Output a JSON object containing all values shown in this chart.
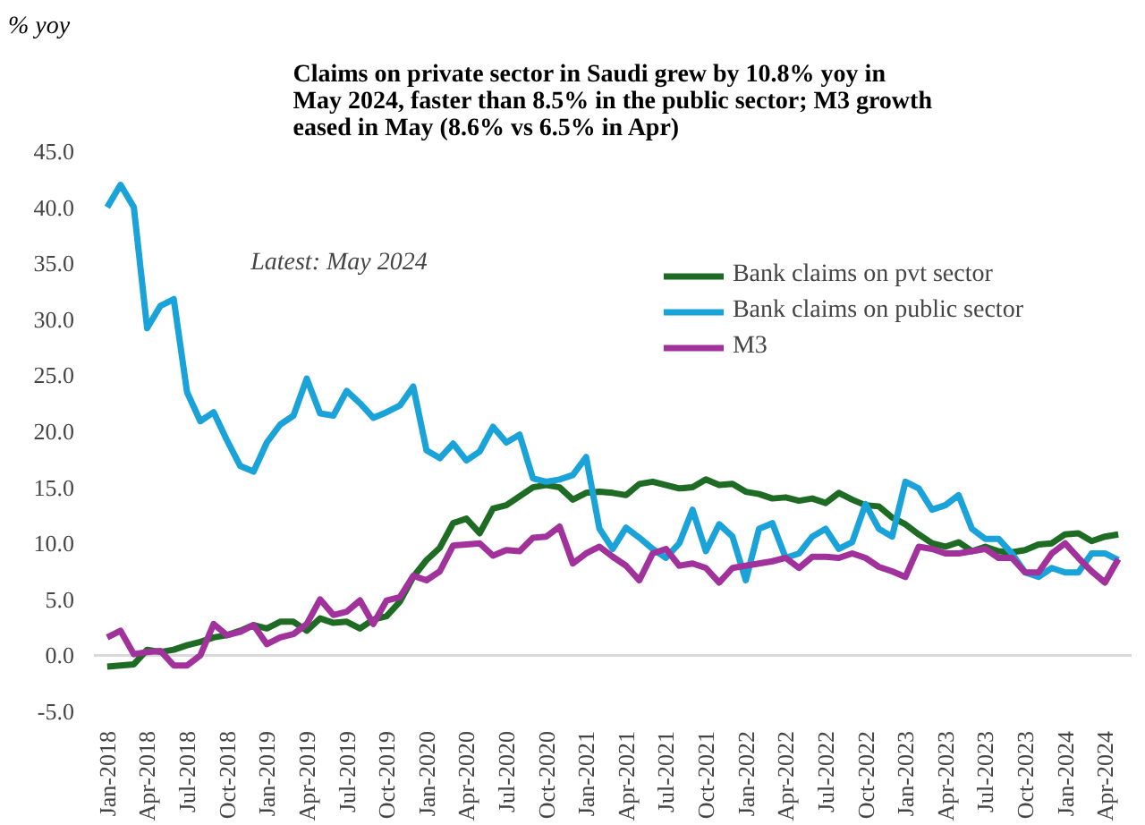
{
  "chart_data": {
    "type": "line",
    "title": "Claims on private sector in Saudi grew by 10.8% yoy in\nMay 2024, faster than 8.5% in the public sector; M3 growth\neased in May (8.6% vs 6.5% in Apr)",
    "ylabel": "% yoy",
    "annotations": [
      "Latest: May 2024"
    ],
    "categories": [
      "Jan-2018",
      null,
      null,
      "Apr-2018",
      null,
      null,
      "Jul-2018",
      null,
      null,
      "Oct-2018",
      null,
      null,
      "Jan-2019",
      null,
      null,
      "Apr-2019",
      null,
      null,
      "Jul-2019",
      null,
      null,
      "Oct-2019",
      null,
      null,
      "Jan-2020",
      null,
      null,
      "Apr-2020",
      null,
      null,
      "Jul-2020",
      null,
      null,
      "Oct-2020",
      null,
      null,
      "Jan-2021",
      null,
      null,
      "Apr-2021",
      null,
      null,
      "Jul-2021",
      null,
      null,
      "Oct-2021",
      null,
      null,
      "Jan-2022",
      null,
      null,
      "Apr-2022",
      null,
      null,
      "Jul-2022",
      null,
      null,
      "Oct-2022",
      null,
      null,
      "Jan-2023",
      null,
      null,
      "Apr-2023",
      null,
      null,
      "Jul-2023",
      null,
      null,
      "Oct-2023",
      null,
      null,
      "Jan-2024",
      null,
      null,
      "Apr-2024",
      null
    ],
    "series": [
      {
        "name": "Bank claims on pvt sector",
        "color": "#1e6b23",
        "values": [
          -1.0,
          -0.9,
          -0.8,
          0.5,
          0.3,
          0.5,
          0.9,
          1.2,
          1.6,
          1.8,
          2.2,
          2.7,
          2.4,
          3.0,
          3.0,
          2.2,
          3.3,
          2.9,
          3.0,
          2.4,
          3.2,
          3.5,
          4.8,
          7.0,
          8.5,
          9.6,
          11.8,
          12.2,
          10.9,
          13.1,
          13.4,
          14.2,
          15.0,
          15.2,
          15.0,
          13.9,
          14.5,
          14.6,
          14.5,
          14.3,
          15.3,
          15.5,
          15.2,
          14.9,
          15.0,
          15.7,
          15.2,
          15.3,
          14.6,
          14.4,
          14.0,
          14.1,
          13.8,
          14.0,
          13.6,
          14.5,
          13.9,
          13.4,
          13.3,
          12.3,
          11.7,
          10.8,
          10.0,
          9.7,
          10.1,
          9.3,
          9.7,
          9.3,
          9.2,
          9.4,
          9.9,
          10.0,
          10.8,
          10.9,
          10.2,
          10.6,
          10.8
        ]
      },
      {
        "name": "Bank claims on public sector",
        "color": "#1aa3d9",
        "values": [
          40,
          42,
          40,
          29.2,
          31.2,
          31.8,
          23.5,
          20.9,
          21.7,
          19.2,
          16.9,
          16.4,
          19,
          20.6,
          21.4,
          24.7,
          21.6,
          21.4,
          23.6,
          22.5,
          21.2,
          21.7,
          22.3,
          24,
          18.3,
          17.6,
          18.9,
          17.4,
          18.2,
          20.4,
          19,
          19.7,
          15.8,
          15.5,
          15.7,
          16.1,
          17.7,
          11.3,
          9.5,
          11.4,
          10.5,
          9.5,
          8.7,
          10,
          13,
          9.3,
          11.7,
          10.6,
          6.7,
          11.3,
          11.8,
          8.7,
          9.1,
          10.6,
          11.3,
          9.5,
          10.1,
          13.5,
          11.3,
          10.6,
          15.5,
          14.9,
          13,
          13.4,
          14.3,
          11.3,
          10.4,
          10.4,
          9.1,
          7.4,
          7.0,
          7.8,
          7.4,
          7.4,
          9.1,
          9.1,
          8.5
        ]
      },
      {
        "name": "M3",
        "color": "#a2329b",
        "values": [
          1.6,
          2.2,
          0.1,
          0.3,
          0.4,
          -0.9,
          -0.9,
          0,
          2.8,
          1.8,
          2.1,
          2.7,
          1.0,
          1.6,
          1.9,
          2.8,
          5.0,
          3.6,
          3.9,
          4.9,
          2.8,
          4.9,
          5.2,
          7.1,
          6.7,
          7.5,
          9.8,
          9.9,
          10.0,
          8.9,
          9.4,
          9.3,
          10.5,
          10.6,
          11.5,
          8.2,
          9.1,
          9.7,
          8.8,
          8.0,
          6.7,
          9.1,
          9.5,
          8.0,
          8.2,
          7.8,
          6.5,
          7.8,
          8.0,
          8.2,
          8.4,
          8.7,
          7.8,
          8.8,
          8.8,
          8.7,
          9.1,
          8.7,
          7.9,
          7.5,
          7.0,
          9.7,
          9.5,
          9.1,
          9.1,
          9.3,
          9.5,
          8.7,
          8.7,
          7.4,
          7.4,
          9.1,
          10.0,
          8.7,
          7.5,
          6.5,
          8.6
        ]
      }
    ],
    "ylim": [
      -5,
      45
    ],
    "yticks": [
      {
        "value": -5,
        "label": "-5.0"
      },
      {
        "value": 0,
        "label": "0.0"
      },
      {
        "value": 5,
        "label": "5.0"
      },
      {
        "value": 10,
        "label": "10.0"
      },
      {
        "value": 15,
        "label": "15.0"
      },
      {
        "value": 20,
        "label": "20.0"
      },
      {
        "value": 25,
        "label": "25.0"
      },
      {
        "value": 30,
        "label": "30.0"
      },
      {
        "value": 35,
        "label": "35.0"
      },
      {
        "value": 40,
        "label": "40.0"
      },
      {
        "value": 45,
        "label": "45.0"
      }
    ],
    "ref_lines": [
      {
        "axis": "y",
        "value": 0,
        "color": "#d9d9d9"
      }
    ],
    "grid": false,
    "legend": "top right",
    "line_style": "solid",
    "marker": "none"
  }
}
